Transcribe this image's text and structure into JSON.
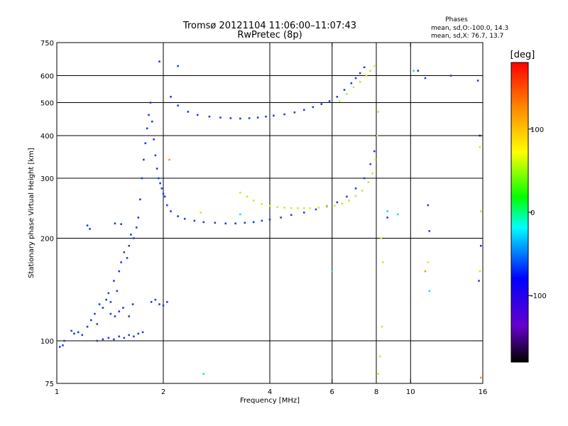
{
  "header": {
    "title": "Tromsø 20121104 11:06:00–11:07:43",
    "subtitle": "RwPretec (8p)"
  },
  "phase_info": {
    "title": "Phases",
    "line_o": "mean, sd,O:-100.0, 14.3",
    "line_x": "mean, sd,X: 76.7, 13.7"
  },
  "colorbar": {
    "unit": "[deg]",
    "range": [
      -180,
      180
    ],
    "ticks": [
      100,
      0,
      -100
    ],
    "tick_labels": [
      "100",
      "0",
      "-100"
    ],
    "colors": [
      "#ff0000",
      "#ff8800",
      "#ffff00",
      "#00ff00",
      "#00ffff",
      "#0000ff",
      "#6600cc",
      "#000000"
    ]
  },
  "chart_data": {
    "type": "scatter",
    "xlabel": "Frequency [MHz]",
    "ylabel": "Stationary phase Virtual Height [km]",
    "x_scale": "log",
    "y_scale": "log",
    "xlim": [
      1,
      16
    ],
    "ylim": [
      75,
      750
    ],
    "x_ticks": [
      1,
      2,
      4,
      6,
      8,
      10,
      16
    ],
    "x_tick_labels": [
      "1",
      "2",
      "4",
      "6",
      "8",
      "10",
      "16"
    ],
    "y_ticks": [
      75,
      100,
      200,
      300,
      400,
      500,
      600,
      750
    ],
    "y_tick_labels": [
      "75",
      "100",
      "200",
      "300",
      "400",
      "500",
      "600",
      "750"
    ],
    "x_grid": [
      2,
      4,
      6,
      8,
      10
    ],
    "y_grid": [
      100,
      200,
      300,
      400,
      500,
      600
    ],
    "series": [
      {
        "color": "#1f3fe6",
        "points": [
          [
            1.1,
            107
          ],
          [
            1.12,
            105
          ],
          [
            1.15,
            106
          ],
          [
            1.18,
            104
          ],
          [
            1.22,
            110
          ],
          [
            1.25,
            115
          ],
          [
            1.28,
            120
          ],
          [
            1.3,
            112
          ],
          [
            1.32,
            128
          ],
          [
            1.35,
            125
          ],
          [
            1.38,
            132
          ],
          [
            1.4,
            138
          ],
          [
            1.42,
            130
          ],
          [
            1.45,
            150
          ],
          [
            1.48,
            140
          ],
          [
            1.5,
            160
          ],
          [
            1.52,
            170
          ],
          [
            1.55,
            182
          ],
          [
            1.58,
            175
          ],
          [
            1.6,
            190
          ],
          [
            1.62,
            205
          ],
          [
            1.65,
            200
          ],
          [
            1.68,
            215
          ],
          [
            1.7,
            230
          ],
          [
            1.72,
            260
          ],
          [
            1.74,
            300
          ],
          [
            1.76,
            340
          ],
          [
            1.78,
            380
          ],
          [
            1.8,
            420
          ],
          [
            1.82,
            460
          ],
          [
            1.84,
            500
          ],
          [
            1.86,
            440
          ],
          [
            1.88,
            390
          ],
          [
            1.9,
            350
          ],
          [
            1.92,
            320
          ],
          [
            1.94,
            300
          ],
          [
            1.96,
            290
          ],
          [
            1.98,
            280
          ],
          [
            2.0,
            270
          ],
          [
            2.02,
            265
          ],
          [
            1.3,
            100
          ],
          [
            1.35,
            101
          ],
          [
            1.4,
            102
          ],
          [
            1.45,
            101
          ],
          [
            1.5,
            103
          ],
          [
            1.55,
            102
          ],
          [
            1.6,
            104
          ],
          [
            1.65,
            103
          ],
          [
            1.7,
            105
          ],
          [
            1.75,
            106
          ],
          [
            1.42,
            120
          ],
          [
            1.46,
            118
          ],
          [
            1.5,
            122
          ],
          [
            1.54,
            125
          ],
          [
            1.6,
            118
          ],
          [
            1.64,
            128
          ],
          [
            1.22,
            218
          ],
          [
            1.24,
            213
          ],
          [
            1.46,
            221
          ],
          [
            1.52,
            220
          ],
          [
            1.02,
            96
          ],
          [
            1.04,
            97
          ],
          [
            1.05,
            100
          ],
          [
            1.95,
            660
          ],
          [
            1.85,
            130
          ],
          [
            1.9,
            132
          ],
          [
            1.95,
            128
          ],
          [
            2.0,
            127
          ],
          [
            2.05,
            130
          ],
          [
            2.05,
            250
          ],
          [
            2.1,
            240
          ],
          [
            2.2,
            232
          ],
          [
            2.3,
            228
          ],
          [
            2.45,
            225
          ],
          [
            2.6,
            223
          ],
          [
            2.8,
            222
          ],
          [
            3.0,
            221
          ],
          [
            3.2,
            221
          ],
          [
            3.4,
            222
          ],
          [
            3.6,
            223
          ],
          [
            3.8,
            225
          ],
          [
            4.0,
            227
          ],
          [
            4.3,
            230
          ],
          [
            4.6,
            234
          ],
          [
            5.0,
            238
          ],
          [
            5.4,
            243
          ],
          [
            5.8,
            248
          ],
          [
            6.2,
            255
          ],
          [
            6.6,
            265
          ],
          [
            7.0,
            280
          ],
          [
            7.4,
            300
          ],
          [
            7.7,
            330
          ],
          [
            7.9,
            360
          ],
          [
            8.0,
            400
          ],
          [
            2.1,
            520
          ],
          [
            2.2,
            490
          ],
          [
            2.35,
            470
          ],
          [
            2.5,
            460
          ],
          [
            2.7,
            455
          ],
          [
            2.9,
            452
          ],
          [
            3.1,
            450
          ],
          [
            3.3,
            449
          ],
          [
            3.5,
            450
          ],
          [
            3.7,
            452
          ],
          [
            3.9,
            455
          ],
          [
            4.1,
            458
          ],
          [
            4.4,
            462
          ],
          [
            4.7,
            468
          ],
          [
            5.0,
            476
          ],
          [
            5.3,
            485
          ],
          [
            5.6,
            495
          ],
          [
            5.9,
            505
          ],
          [
            6.2,
            520
          ],
          [
            6.5,
            545
          ],
          [
            6.8,
            570
          ],
          [
            7.0,
            590
          ],
          [
            7.2,
            610
          ],
          [
            7.4,
            635
          ],
          [
            10.5,
            620
          ],
          [
            11,
            590
          ],
          [
            13,
            600
          ],
          [
            15.5,
            580
          ],
          [
            15.7,
            400
          ],
          [
            11.2,
            250
          ],
          [
            11.3,
            210
          ],
          [
            15.8,
            190
          ],
          [
            15.6,
            150
          ],
          [
            8.6,
            230
          ],
          [
            2.2,
            640
          ]
        ]
      },
      {
        "color": "#c8ee22",
        "points": [
          [
            3.3,
            272
          ],
          [
            3.45,
            265
          ],
          [
            3.6,
            258
          ],
          [
            3.8,
            252
          ],
          [
            4.0,
            249
          ],
          [
            4.2,
            247
          ],
          [
            4.4,
            246
          ],
          [
            4.6,
            245
          ],
          [
            4.8,
            245
          ],
          [
            5.0,
            245
          ],
          [
            5.2,
            245
          ],
          [
            5.5,
            246
          ],
          [
            5.8,
            247
          ],
          [
            6.1,
            249
          ],
          [
            6.4,
            253
          ],
          [
            6.7,
            258
          ],
          [
            7.0,
            266
          ],
          [
            7.3,
            276
          ],
          [
            7.6,
            292
          ],
          [
            7.8,
            310
          ],
          [
            7.95,
            340
          ],
          [
            8.05,
            400
          ],
          [
            8.1,
            470
          ],
          [
            6.3,
            505
          ],
          [
            6.6,
            530
          ],
          [
            6.9,
            555
          ],
          [
            7.2,
            575
          ],
          [
            7.5,
            600
          ],
          [
            7.7,
            620
          ],
          [
            7.9,
            640
          ],
          [
            8.3,
            110
          ],
          [
            8.2,
            90
          ],
          [
            8.35,
            170
          ],
          [
            8.25,
            200
          ],
          [
            11.2,
            170
          ],
          [
            15.7,
            160
          ],
          [
            15.7,
            370
          ],
          [
            8.1,
            80
          ],
          [
            15.8,
            240
          ],
          [
            2.55,
            238
          ]
        ]
      },
      {
        "color": "#ff9a10",
        "points": [
          [
            11.0,
            160
          ],
          [
            15.8,
            78
          ],
          [
            2.08,
            340
          ]
        ]
      },
      {
        "color": "#22dddd",
        "points": [
          [
            8.6,
            240
          ],
          [
            9.2,
            235
          ],
          [
            11.3,
            140
          ],
          [
            2.6,
            80
          ],
          [
            6.0,
            160
          ],
          [
            10.2,
            620
          ],
          [
            3.3,
            235
          ]
        ]
      }
    ]
  }
}
